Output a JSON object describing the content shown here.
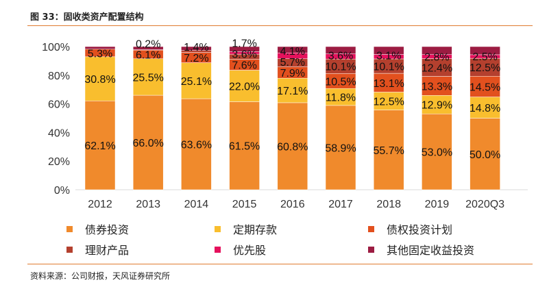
{
  "title": "图 33：固收类资产配置结构",
  "source": "资料来源：公司财报，天风证券研究所",
  "chart_data": {
    "type": "bar",
    "stacked": true,
    "categories": [
      "2012",
      "2013",
      "2014",
      "2015",
      "2016",
      "2017",
      "2018",
      "2019",
      "2020Q3"
    ],
    "ylim": [
      0,
      100
    ],
    "yticks": [
      "0%",
      "20%",
      "40%",
      "60%",
      "80%",
      "100%"
    ],
    "grid": false,
    "legend_position": "bottom",
    "series": [
      {
        "name": "债券投资",
        "color": "#F08A2C",
        "values": [
          62.1,
          66.0,
          63.6,
          61.5,
          60.8,
          58.9,
          55.7,
          53.0,
          50.0
        ],
        "labels": [
          "62.1%",
          "66.0%",
          "63.6%",
          "61.5%",
          "60.8%",
          "58.9%",
          "55.7%",
          "53.0%",
          "50.0%"
        ]
      },
      {
        "name": "定期存款",
        "color": "#F9BE2E",
        "values": [
          30.8,
          25.5,
          25.1,
          22.0,
          17.1,
          11.8,
          12.5,
          12.9,
          14.8
        ],
        "labels": [
          "30.8%",
          "25.5%",
          "25.1%",
          "22.0%",
          "17.1%",
          "11.8%",
          "12.5%",
          "12.9%",
          "14.8%"
        ]
      },
      {
        "name": "债权投资计划",
        "color": "#E2501E",
        "values": [
          5.3,
          6.1,
          7.2,
          7.6,
          7.9,
          10.5,
          13.1,
          13.3,
          14.5
        ],
        "labels": [
          "5.3%",
          "6.1%",
          "7.2%",
          "7.6%",
          "7.9%",
          "10.5%",
          "13.1%",
          "13.3%",
          "14.5%"
        ]
      },
      {
        "name": "理财产品",
        "color": "#B4402E",
        "values": [
          0,
          0.2,
          1.4,
          3.6,
          5.7,
          10.1,
          10.1,
          12.4,
          12.5
        ],
        "labels": [
          "",
          "0.2%",
          "1.4%",
          "3.6%",
          "5.7%",
          "10.1%",
          "10.1%",
          "12.4%",
          "12.5%"
        ]
      },
      {
        "name": "优先股",
        "color": "#E5115C",
        "values": [
          0,
          0,
          0,
          1.7,
          4.1,
          3.6,
          3.1,
          2.8,
          2.5
        ],
        "labels": [
          "",
          "",
          "",
          "1.7%",
          "4.1%",
          "3.6%",
          "3.1%",
          "2.8%",
          "2.5%"
        ]
      },
      {
        "name": "其他固定收益投资",
        "color": "#9C1C42",
        "values": [
          1.8,
          2.2,
          2.7,
          3.6,
          4.4,
          5.1,
          5.5,
          5.6,
          5.7
        ],
        "labels": [
          "",
          "",
          "",
          "",
          "",
          "",
          "",
          "",
          ""
        ]
      }
    ]
  }
}
